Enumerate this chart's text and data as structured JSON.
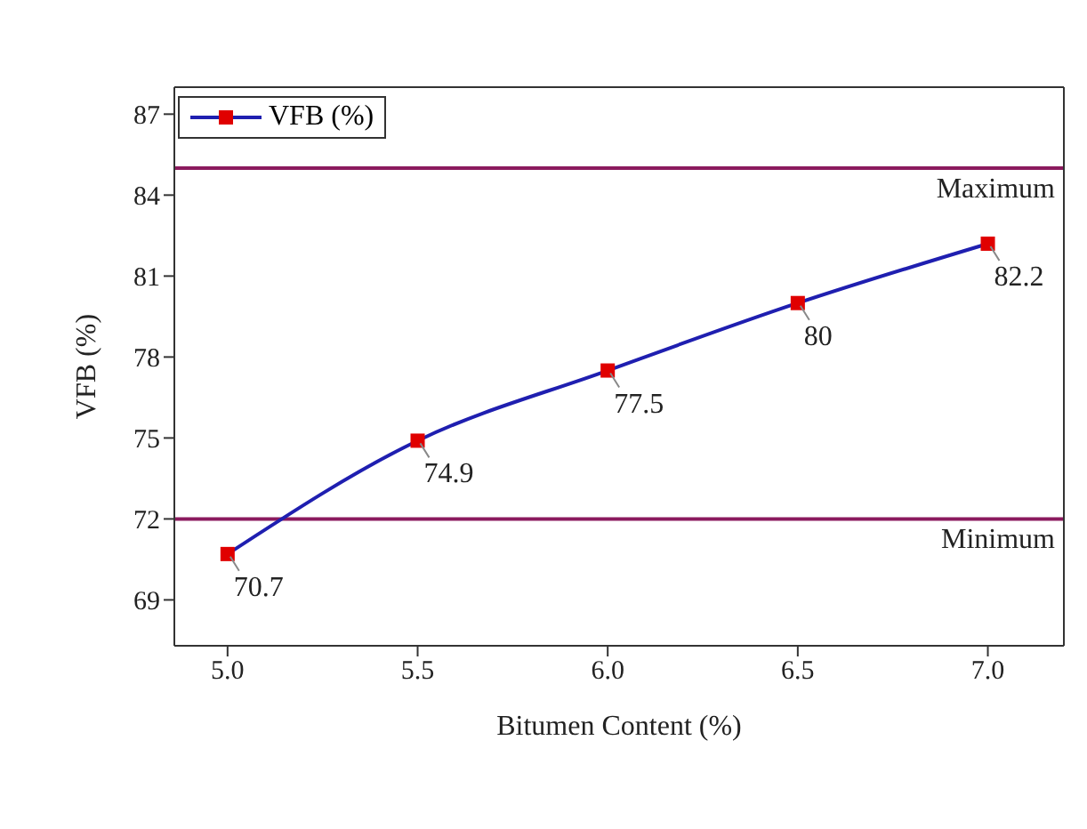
{
  "chart_data": {
    "type": "line",
    "xlabel": "Bitumen Content (%)",
    "ylabel": "VFB (%)",
    "x": [
      5.0,
      5.5,
      6.0,
      6.5,
      7.0
    ],
    "series": [
      {
        "name": "VFB (%)",
        "type": "scatter",
        "color": "#e00000",
        "values": [
          70.7,
          74.9,
          77.5,
          80,
          82.2
        ],
        "value_labels": [
          "70.7",
          "74.9",
          "77.5",
          "80",
          "82.2"
        ],
        "marker": "square"
      },
      {
        "color": "#1f1fb0",
        "values": [
          70.7,
          74.9,
          77.5,
          80,
          82.2
        ]
      }
    ],
    "xlim": [
      4.86,
      7.2
    ],
    "xticks": [
      {
        "value": 5,
        "label": "5.0"
      },
      {
        "value": 5.5,
        "label": "5.5"
      },
      {
        "value": 6,
        "label": "6.0"
      },
      {
        "value": 6.5,
        "label": "6.5"
      },
      {
        "value": 7,
        "label": "7.0"
      }
    ],
    "ylim": [
      67.3,
      88
    ],
    "yticks": [
      69,
      72,
      75,
      78,
      81,
      84,
      87
    ],
    "ref_lines": [
      {
        "axis": "y",
        "value": 85,
        "label": "Maximum",
        "color": "#8b1a5e"
      },
      {
        "axis": "y",
        "value": 72,
        "label": "Minimum",
        "color": "#8b1a5e"
      }
    ],
    "legend": "top left"
  }
}
